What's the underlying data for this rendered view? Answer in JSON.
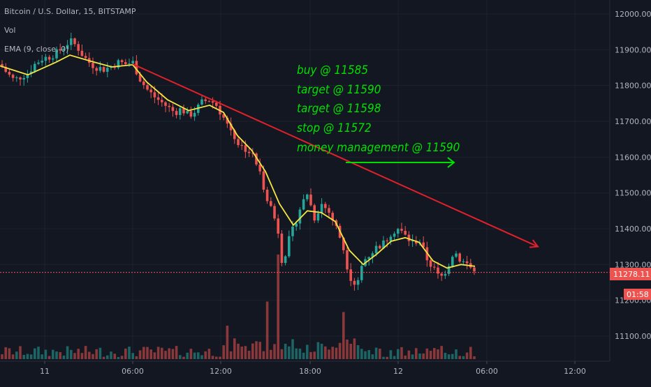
{
  "legend": {
    "title": "Bitcoin / U.S. Dollar, 15, BITSTAMP",
    "vol": "Vol",
    "ema": "EMA (9, close, 0)"
  },
  "annotations": [
    "buy @ 11585",
    "target @ 11590",
    "target @ 11598",
    "stop @ 11572",
    "money management @ 11590"
  ],
  "price_tag": {
    "price": "11278.11",
    "countdown": "01:58"
  },
  "colors": {
    "background": "#131722",
    "up": "#26a69a",
    "down": "#ef5350",
    "ema": "#f5e642",
    "trendline": "#e0202a",
    "annotation": "#00e000",
    "price_line": "#ef5350"
  },
  "chart_data": {
    "type": "candlestick",
    "symbol": "Bitcoin / U.S. Dollar",
    "interval": "15",
    "exchange": "BITSTAMP",
    "y_ticks": [
      "12000.00",
      "11900.00",
      "11800.00",
      "11700.00",
      "11600.00",
      "11500.00",
      "11400.00",
      "11300.00",
      "11200.00",
      "11100.00"
    ],
    "ylim": [
      11040,
      12040
    ],
    "x_ticks": [
      "11",
      "06:00",
      "12:00",
      "18:00",
      "12",
      "06:00",
      "12:00"
    ],
    "last_price": 11278.11,
    "close_path": [
      [
        0,
        11860
      ],
      [
        10,
        11835
      ],
      [
        20,
        11815
      ],
      [
        30,
        11825
      ],
      [
        40,
        11835
      ],
      [
        50,
        11860
      ],
      [
        60,
        11875
      ],
      [
        70,
        11880
      ],
      [
        80,
        11890
      ],
      [
        90,
        11905
      ],
      [
        100,
        11925
      ],
      [
        110,
        11910
      ],
      [
        120,
        11880
      ],
      [
        130,
        11860
      ],
      [
        140,
        11850
      ],
      [
        150,
        11845
      ],
      [
        160,
        11855
      ],
      [
        170,
        11865
      ],
      [
        180,
        11860
      ],
      [
        190,
        11865
      ],
      [
        200,
        11820
      ],
      [
        210,
        11790
      ],
      [
        220,
        11770
      ],
      [
        230,
        11755
      ],
      [
        240,
        11740
      ],
      [
        250,
        11725
      ],
      [
        260,
        11735
      ],
      [
        270,
        11715
      ],
      [
        280,
        11730
      ],
      [
        290,
        11755
      ],
      [
        300,
        11760
      ],
      [
        310,
        11745
      ],
      [
        320,
        11710
      ],
      [
        330,
        11680
      ],
      [
        340,
        11640
      ],
      [
        350,
        11625
      ],
      [
        360,
        11610
      ],
      [
        370,
        11570
      ],
      [
        380,
        11500
      ],
      [
        390,
        11450
      ],
      [
        400,
        11380
      ],
      [
        405,
        11285
      ],
      [
        410,
        11350
      ],
      [
        420,
        11400
      ],
      [
        430,
        11460
      ],
      [
        440,
        11500
      ],
      [
        450,
        11430
      ],
      [
        460,
        11470
      ],
      [
        470,
        11450
      ],
      [
        480,
        11410
      ],
      [
        490,
        11360
      ],
      [
        500,
        11270
      ],
      [
        510,
        11240
      ],
      [
        520,
        11310
      ],
      [
        530,
        11330
      ],
      [
        540,
        11350
      ],
      [
        550,
        11360
      ],
      [
        560,
        11390
      ],
      [
        570,
        11400
      ],
      [
        580,
        11380
      ],
      [
        590,
        11360
      ],
      [
        600,
        11370
      ],
      [
        610,
        11320
      ],
      [
        620,
        11290
      ],
      [
        630,
        11260
      ],
      [
        640,
        11290
      ],
      [
        650,
        11340
      ],
      [
        660,
        11310
      ],
      [
        670,
        11300
      ],
      [
        680,
        11278
      ]
    ],
    "ema": [
      [
        0,
        11855
      ],
      [
        40,
        11830
      ],
      [
        80,
        11865
      ],
      [
        100,
        11885
      ],
      [
        130,
        11868
      ],
      [
        160,
        11852
      ],
      [
        190,
        11858
      ],
      [
        210,
        11810
      ],
      [
        240,
        11760
      ],
      [
        270,
        11730
      ],
      [
        300,
        11745
      ],
      [
        320,
        11725
      ],
      [
        340,
        11660
      ],
      [
        360,
        11620
      ],
      [
        380,
        11560
      ],
      [
        400,
        11470
      ],
      [
        420,
        11410
      ],
      [
        440,
        11450
      ],
      [
        460,
        11445
      ],
      [
        480,
        11420
      ],
      [
        500,
        11340
      ],
      [
        520,
        11300
      ],
      [
        540,
        11330
      ],
      [
        560,
        11365
      ],
      [
        580,
        11375
      ],
      [
        600,
        11362
      ],
      [
        620,
        11310
      ],
      [
        640,
        11290
      ],
      [
        660,
        11300
      ],
      [
        680,
        11295
      ]
    ],
    "volume_spikes": [
      {
        "x": 384,
        "value": 0.55
      },
      {
        "x": 400,
        "value": 1.0
      },
      {
        "x": 490,
        "value": 0.45
      },
      {
        "x": 327,
        "value": 0.32
      }
    ],
    "trendline": {
      "from": [
        190,
        11860
      ],
      "to": [
        770,
        11350
      ]
    },
    "arrow": {
      "from": [
        495,
        11585
      ],
      "to": [
        650,
        11585
      ]
    }
  }
}
